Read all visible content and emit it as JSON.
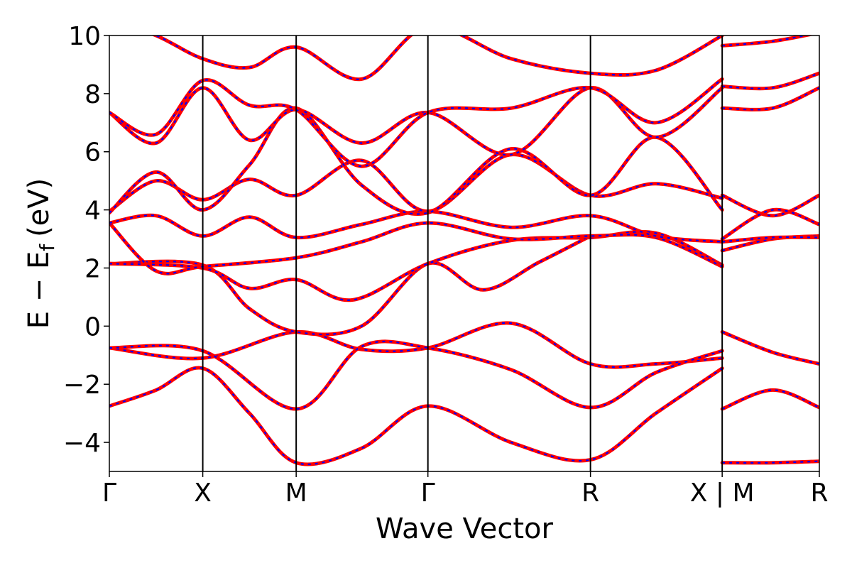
{
  "chart_data": {
    "type": "line",
    "xlabel": "Wave Vector",
    "ylabel_main": "E − E",
    "ylabel_sub": "f",
    "ylabel_unit": "(eV)",
    "ylim": [
      -5,
      10
    ],
    "yticks": [
      -4,
      -2,
      0,
      2,
      4,
      6,
      8,
      10
    ],
    "ytick_labels": [
      "−4",
      "−2",
      "0",
      "2",
      "4",
      "6",
      "8",
      "10"
    ],
    "xlim": [
      0,
      7.6
    ],
    "kpoints": [
      {
        "label": "Γ",
        "x": 0
      },
      {
        "label": "X",
        "x": 1.0
      },
      {
        "label": "M",
        "x": 2.0
      },
      {
        "label": "Γ",
        "x": 3.41
      },
      {
        "label": "R",
        "x": 5.15
      },
      {
        "label": "X | M",
        "x": 6.56
      },
      {
        "label": "R",
        "x": 7.6
      }
    ],
    "dividers": [
      1.0,
      2.0,
      3.41,
      5.15,
      6.56
    ],
    "colors": {
      "band": "#ff0000",
      "overlay": "#0000ff",
      "axes": "#000000"
    },
    "series": [
      {
        "x": [
          0,
          0.5,
          1.0,
          1.5,
          2.0,
          2.7,
          3.41,
          4.3,
          5.15,
          5.85,
          6.56
        ],
        "y": [
          -2.75,
          -2.2,
          -1.45,
          -3.0,
          -4.7,
          -4.2,
          -2.75,
          -4.0,
          -4.6,
          -3.0,
          -1.45
        ]
      },
      {
        "x": [
          6.56,
          7.1,
          7.6
        ],
        "y": [
          -4.7,
          -4.7,
          -4.65
        ]
      },
      {
        "x": [
          0,
          1.0,
          2.0,
          2.7,
          3.41,
          4.3,
          5.15,
          5.85,
          6.56
        ],
        "y": [
          -0.75,
          -1.1,
          -0.2,
          -0.8,
          -0.75,
          0.1,
          -1.3,
          -1.3,
          -1.1
        ]
      },
      {
        "x": [
          0,
          1.0,
          2.0,
          2.7,
          3.41,
          4.3,
          5.15,
          5.85,
          6.56
        ],
        "y": [
          -0.75,
          -0.85,
          -2.85,
          -0.7,
          -0.75,
          -1.5,
          -2.8,
          -1.6,
          -0.85
        ]
      },
      {
        "x": [
          6.56,
          7.1,
          7.6
        ],
        "y": [
          -2.85,
          -2.2,
          -2.8
        ]
      },
      {
        "x": [
          6.56,
          7.1,
          7.6
        ],
        "y": [
          -0.2,
          -0.9,
          -1.3
        ]
      },
      {
        "x": [
          0,
          1.0,
          1.5,
          2.0,
          2.7,
          3.41,
          4.0,
          4.6,
          5.15
        ],
        "y": [
          2.15,
          2.1,
          0.6,
          -0.2,
          0.0,
          2.15,
          1.25,
          2.2,
          3.1
        ]
      },
      {
        "x": [
          0,
          1.0,
          1.5,
          2.0,
          2.6,
          3.41,
          4.3,
          5.15,
          5.85,
          6.56
        ],
        "y": [
          2.15,
          2.0,
          1.3,
          1.6,
          0.9,
          2.15,
          2.95,
          3.05,
          3.2,
          2.1
        ]
      },
      {
        "x": [
          0,
          0.5,
          1.0,
          2.0,
          2.7,
          3.41,
          4.3,
          5.15,
          5.85,
          6.56
        ],
        "y": [
          3.55,
          1.9,
          2.05,
          2.35,
          2.9,
          3.55,
          3.0,
          3.1,
          3.05,
          2.05
        ]
      },
      {
        "x": [
          0,
          0.5,
          1.0,
          1.5,
          2.0,
          2.7,
          3.41,
          4.3,
          5.15,
          5.85,
          6.56
        ],
        "y": [
          3.55,
          3.8,
          3.1,
          3.75,
          3.05,
          3.5,
          3.95,
          3.4,
          3.8,
          3.1,
          2.9
        ]
      },
      {
        "x": [
          6.56,
          7.1,
          7.6
        ],
        "y": [
          2.6,
          3.0,
          3.1
        ]
      },
      {
        "x": [
          6.56,
          7.1,
          7.6
        ],
        "y": [
          2.9,
          3.05,
          3.05
        ]
      },
      {
        "x": [
          0,
          0.5,
          1.0,
          1.5,
          2.0,
          2.7,
          3.41,
          4.3,
          5.15,
          5.85,
          6.56
        ],
        "y": [
          3.95,
          5.0,
          4.35,
          5.05,
          4.5,
          5.7,
          3.95,
          5.9,
          4.5,
          4.9,
          4.4
        ]
      },
      {
        "x": [
          0,
          0.5,
          1.0,
          1.5,
          2.0,
          2.7,
          3.41,
          4.3,
          5.15,
          5.85,
          6.56
        ],
        "y": [
          3.9,
          5.3,
          4.0,
          5.55,
          7.5,
          4.85,
          3.9,
          6.1,
          4.5,
          6.5,
          4.0
        ]
      },
      {
        "x": [
          6.56,
          7.1,
          7.6
        ],
        "y": [
          4.5,
          3.8,
          4.5
        ]
      },
      {
        "x": [
          6.56,
          7.1,
          7.6
        ],
        "y": [
          3.0,
          4.0,
          3.5
        ]
      },
      {
        "x": [
          0,
          0.5,
          1.0,
          1.5,
          2.0,
          2.7,
          3.41,
          4.3,
          5.15,
          5.85,
          6.56
        ],
        "y": [
          7.35,
          6.3,
          8.2,
          6.4,
          7.45,
          6.3,
          7.35,
          5.9,
          8.2,
          6.5,
          8.2
        ]
      },
      {
        "x": [
          0,
          0.5,
          1.0,
          1.5,
          2.0,
          2.7,
          3.41,
          4.3,
          5.15,
          5.85,
          6.56
        ],
        "y": [
          7.35,
          6.6,
          8.45,
          7.6,
          7.45,
          5.5,
          7.35,
          7.5,
          8.2,
          7.0,
          8.5
        ]
      },
      {
        "x": [
          6.56,
          7.1,
          7.6
        ],
        "y": [
          7.5,
          7.5,
          8.2
        ]
      },
      {
        "x": [
          6.56,
          7.1,
          7.6
        ],
        "y": [
          8.25,
          8.2,
          8.7
        ]
      },
      {
        "x": [
          0,
          0.5,
          1.0,
          1.5,
          2.0,
          2.7,
          3.41,
          4.3,
          5.15,
          5.85,
          6.56
        ],
        "y": [
          10.5,
          10.0,
          9.2,
          8.9,
          9.6,
          8.5,
          10.3,
          9.2,
          8.7,
          8.8,
          10.0
        ]
      },
      {
        "x": [
          6.56,
          7.1,
          7.6
        ],
        "y": [
          9.65,
          9.8,
          10.1
        ]
      }
    ]
  }
}
